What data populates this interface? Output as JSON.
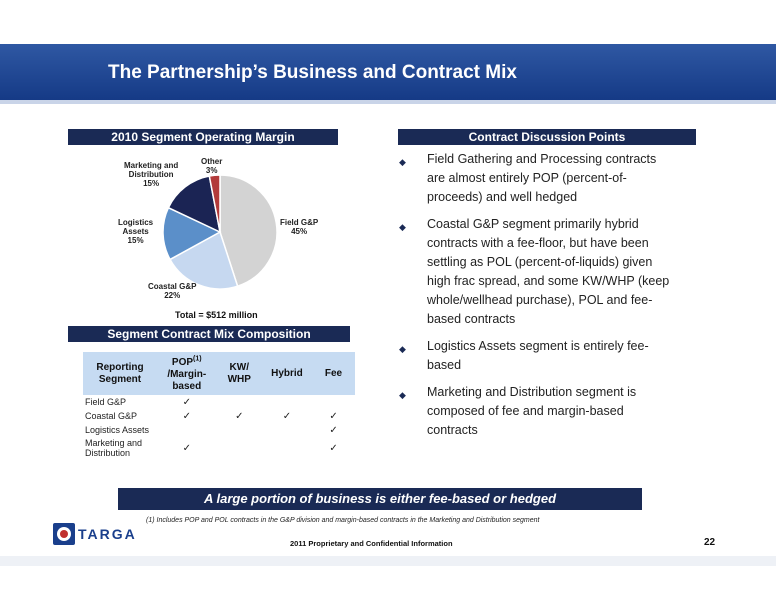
{
  "slide": {
    "title": "The Partnership’s Business and Contract Mix",
    "page_number": "22",
    "confidential": "2011 Proprietary and Confidential Information",
    "logo_text": "TARGA",
    "banner": "A large portion of business is either fee-based or hedged",
    "footnote": "(1)  Includes POP and POL contracts in the G&P division and margin-based contracts in the Marketing and Distribution segment"
  },
  "left": {
    "pie_header": "2010 Segment Operating Margin",
    "pie_total": "Total = $512 million",
    "mix_header": "Segment Contract Mix Composition"
  },
  "chart_data": {
    "type": "pie",
    "title": "2010 Segment Operating Margin",
    "categories": [
      "Field G&P",
      "Coastal G&P",
      "Logistics Assets",
      "Marketing and Distribution",
      "Other"
    ],
    "values": [
      45,
      22,
      15,
      15,
      3
    ],
    "slice_labels": [
      "Field G&P\n45%",
      "Coastal G&P\n22%",
      "Logistics\nAssets\n15%",
      "Marketing and\nDistribution\n15%",
      "Other\n3%"
    ],
    "colors": [
      "#d3d3d3",
      "#c6d8f0",
      "#5b8fc9",
      "#1b2454",
      "#b23a3a"
    ],
    "annotation": "Total = $512 million"
  },
  "mix_table": {
    "headers": [
      "Reporting Segment",
      "POP(1) /Margin-based",
      "KW/ WHP",
      "Hybrid",
      "Fee"
    ],
    "header_superscript": "(1)",
    "rows": [
      {
        "segment": "Field G&P",
        "checks": [
          "✓",
          "",
          "",
          ""
        ]
      },
      {
        "segment": "Coastal G&P",
        "checks": [
          "✓",
          "✓",
          "✓",
          "✓"
        ]
      },
      {
        "segment": "Logistics Assets",
        "checks": [
          "",
          "",
          "",
          "✓"
        ]
      },
      {
        "segment": "Marketing and Distribution",
        "checks": [
          "✓",
          "",
          "",
          "✓"
        ]
      }
    ]
  },
  "right": {
    "header": "Contract Discussion Points",
    "bullets": [
      "Field Gathering and Processing contracts are almost entirely POP (percent-of-proceeds) and well hedged",
      "Coastal G&P segment primarily hybrid contracts with a fee-floor, but have been settling as POL (percent-of-liquids) given high frac spread, and some KW/WHP (keep whole/wellhead purchase), POL and fee-based contracts",
      "Logistics Assets segment is entirely fee-based",
      "Marketing and Distribution segment is composed of fee and margin-based contracts"
    ]
  },
  "colors": {
    "title_band": "#1e4796",
    "header_navy": "#1a2a55",
    "table_header": "#c6dbf2"
  }
}
